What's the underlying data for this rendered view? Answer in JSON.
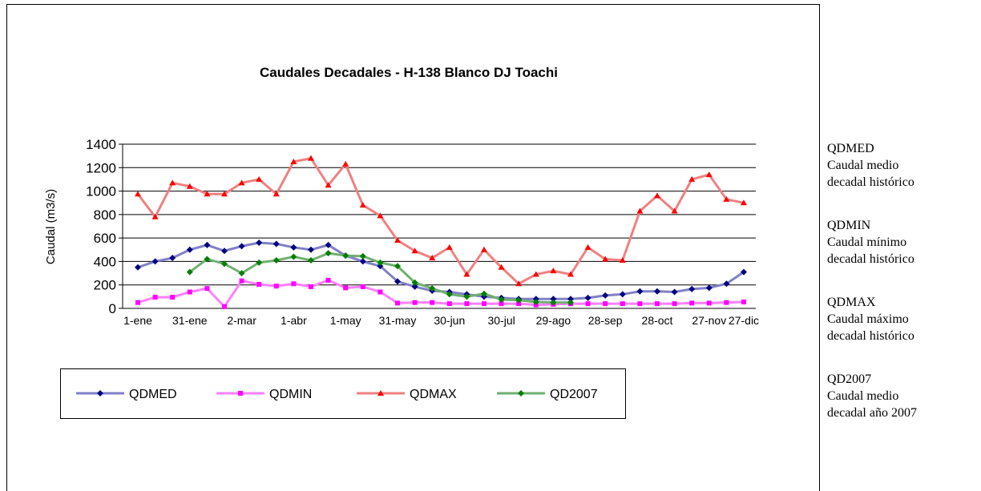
{
  "chart_data": {
    "type": "line",
    "title": "Caudales Decadales - H-138 Blanco DJ Toachi",
    "y_label": "Caudal (m3/s)",
    "categories": [
      "1-ene",
      null,
      null,
      "31-ene",
      null,
      null,
      "2-mar",
      null,
      null,
      "1-abr",
      null,
      null,
      "1-may",
      null,
      null,
      "31-may",
      null,
      null,
      "30-jun",
      null,
      null,
      "30-jul",
      null,
      null,
      "29-ago",
      null,
      null,
      "28-sep",
      null,
      null,
      "28-oct",
      null,
      null,
      "27-nov",
      null,
      "27-dic"
    ],
    "ylim": [
      0,
      1400
    ],
    "yticks": [
      0,
      200,
      400,
      600,
      800,
      1000,
      1200,
      1400
    ],
    "grid": true,
    "legend": "bottom",
    "series": [
      {
        "name": "QDMED",
        "color": "#8080c8",
        "marker_color": "#000080",
        "marker": "diamond",
        "values": [
          350,
          400,
          430,
          500,
          540,
          490,
          530,
          560,
          550,
          520,
          500,
          540,
          450,
          400,
          360,
          230,
          185,
          150,
          140,
          120,
          100,
          90,
          80,
          80,
          80,
          80,
          90,
          110,
          120,
          145,
          145,
          140,
          165,
          175,
          210,
          310
        ]
      },
      {
        "name": "QDMIN",
        "color": "#ff80ff",
        "marker_color": "#ff00ff",
        "marker": "square",
        "values": [
          50,
          95,
          95,
          140,
          170,
          15,
          235,
          205,
          190,
          210,
          185,
          240,
          175,
          185,
          140,
          45,
          50,
          50,
          40,
          40,
          40,
          40,
          40,
          30,
          35,
          40,
          40,
          40,
          40,
          40,
          40,
          40,
          45,
          45,
          50,
          55
        ]
      },
      {
        "name": "QDMAX",
        "color": "#f08080",
        "marker_color": "#ff0000",
        "marker": "triangle",
        "values": [
          975,
          780,
          1070,
          1040,
          975,
          975,
          1070,
          1100,
          975,
          1250,
          1280,
          1050,
          1230,
          880,
          790,
          580,
          490,
          430,
          520,
          290,
          500,
          350,
          210,
          290,
          320,
          290,
          520,
          420,
          410,
          830,
          960,
          830,
          1100,
          1140,
          930,
          900
        ]
      },
      {
        "name": "QD2007",
        "color": "#70b070",
        "marker_color": "#008000",
        "marker": "diamond",
        "values": [
          null,
          null,
          null,
          310,
          420,
          380,
          300,
          390,
          410,
          440,
          410,
          470,
          450,
          445,
          390,
          360,
          220,
          170,
          120,
          100,
          125,
          75,
          70,
          55,
          50,
          50,
          null,
          null,
          null,
          null,
          null,
          null,
          null,
          null,
          null,
          null
        ]
      }
    ]
  },
  "notes": [
    {
      "code": "QDMED",
      "lines": [
        "Caudal medio",
        "decadal histórico"
      ]
    },
    {
      "code": "QDMIN",
      "lines": [
        "Caudal mínimo",
        "decadal histórico"
      ]
    },
    {
      "code": "QDMAX",
      "lines": [
        "Caudal máximo",
        "decadal histórico"
      ]
    },
    {
      "code": "QD2007",
      "lines": [
        "Caudal medio",
        "decadal año 2007"
      ]
    }
  ]
}
